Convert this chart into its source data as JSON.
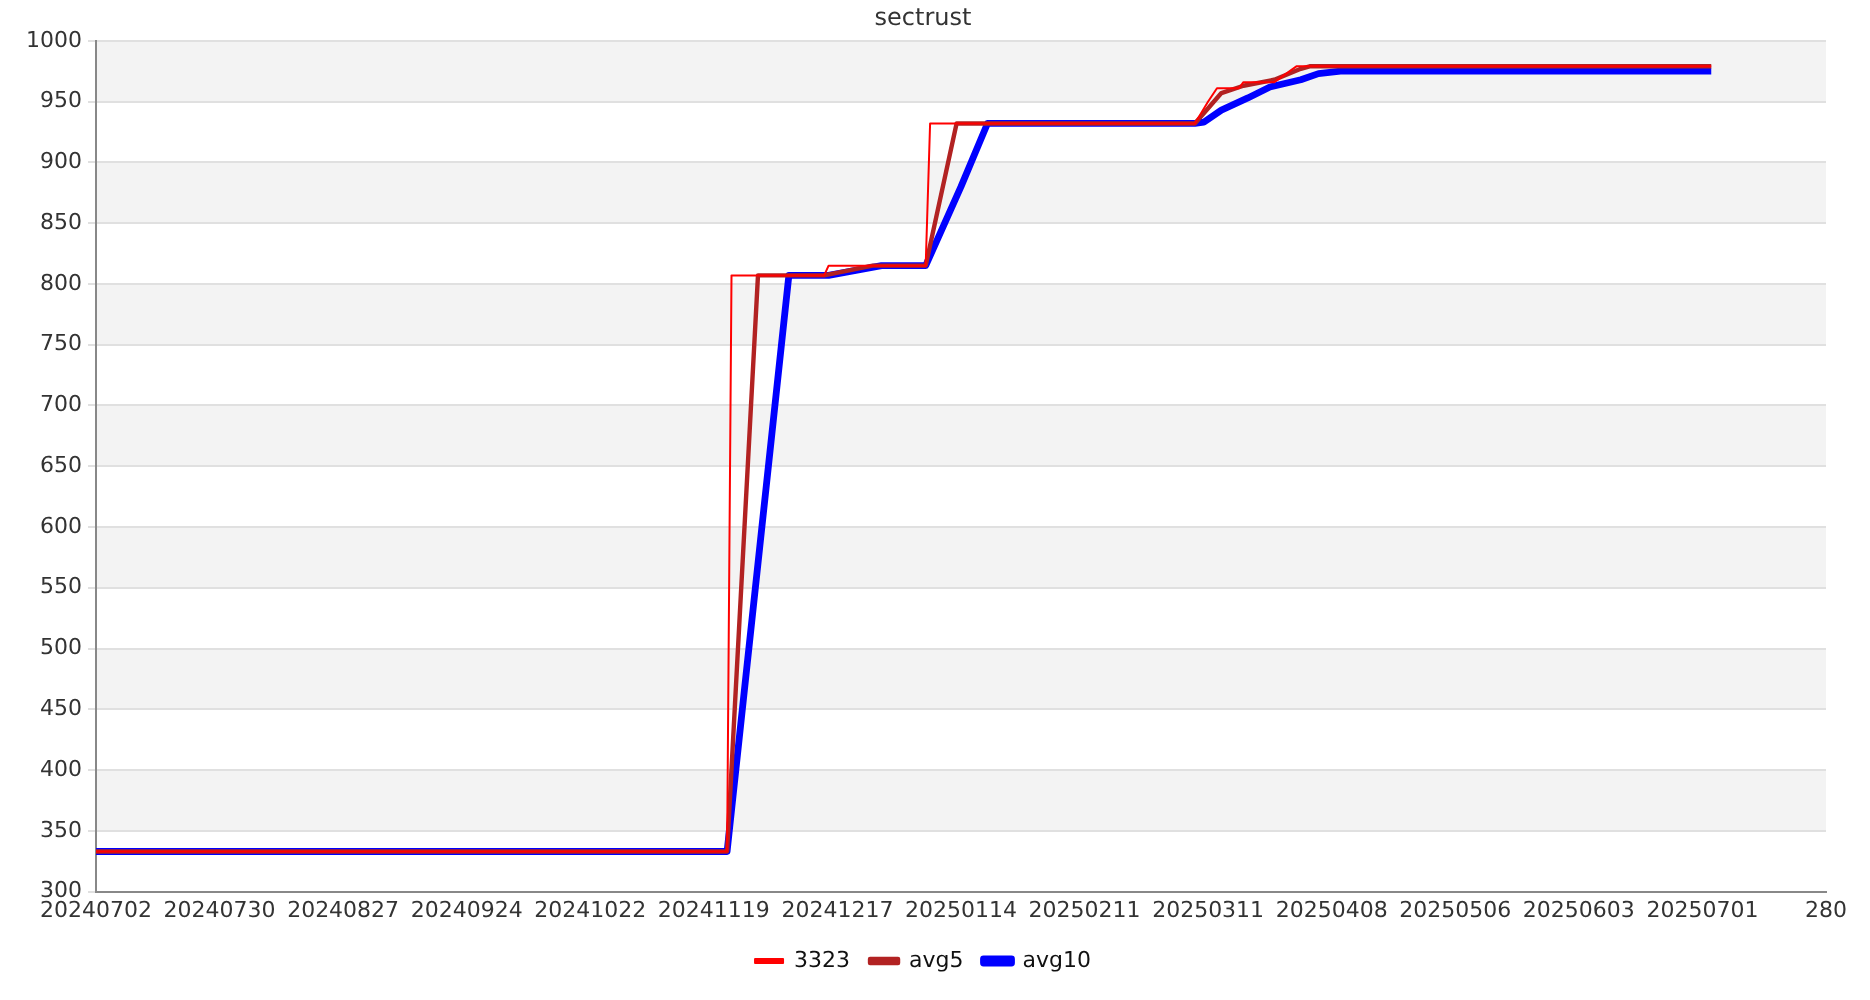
{
  "chart_data": {
    "type": "line",
    "title": "sectrust",
    "xlim": [
      "2024-07-02",
      "2025-07-29"
    ],
    "xticks": [
      {
        "value": "2024-07-02",
        "label": "20240702"
      },
      {
        "value": "2024-07-30",
        "label": "20240730"
      },
      {
        "value": "2024-08-27",
        "label": "20240827"
      },
      {
        "value": "2024-09-24",
        "label": "20240924"
      },
      {
        "value": "2024-10-22",
        "label": "20241022"
      },
      {
        "value": "2024-11-19",
        "label": "20241119"
      },
      {
        "value": "2024-12-17",
        "label": "20241217"
      },
      {
        "value": "2025-01-14",
        "label": "20250114"
      },
      {
        "value": "2025-02-11",
        "label": "20250211"
      },
      {
        "value": "2025-03-11",
        "label": "20250311"
      },
      {
        "value": "2025-04-08",
        "label": "20250408"
      },
      {
        "value": "2025-05-06",
        "label": "20250506"
      },
      {
        "value": "2025-06-03",
        "label": "20250603"
      },
      {
        "value": "2025-07-01",
        "label": "20250701"
      },
      {
        "value": "2025-07-29",
        "label": "280"
      }
    ],
    "ylim": [
      300,
      1000
    ],
    "yticks": [
      300,
      350,
      400,
      450,
      500,
      550,
      600,
      650,
      700,
      750,
      800,
      850,
      900,
      950,
      1000
    ],
    "grid": "y",
    "legend": "bottom",
    "marker": "none",
    "line_style": "solid",
    "series": [
      {
        "name": "3323",
        "color": "#ff0000",
        "x": [
          "2024-07-02",
          "2024-11-22",
          "2024-11-23",
          "2024-12-14",
          "2024-12-15",
          "2025-01-06",
          "2025-01-07",
          "2025-03-08",
          "2025-03-11",
          "2025-03-13",
          "2025-03-18",
          "2025-03-19",
          "2025-03-26",
          "2025-03-31",
          "2025-07-03"
        ],
        "values": [
          333,
          333,
          807,
          807,
          815,
          815,
          932,
          932,
          950,
          961,
          961,
          966,
          966,
          979,
          979
        ]
      },
      {
        "name": "avg5",
        "color": "#b22222",
        "x": [
          "2024-07-02",
          "2024-11-22",
          "2024-11-29",
          "2024-12-14",
          "2024-12-25",
          "2025-01-06",
          "2025-01-13",
          "2025-03-08",
          "2025-03-14",
          "2025-03-19",
          "2025-03-26",
          "2025-04-01",
          "2025-04-03",
          "2025-07-03"
        ],
        "values": [
          333,
          333,
          807,
          807,
          815,
          815,
          932,
          932,
          957,
          963,
          968,
          977,
          979,
          979
        ]
      },
      {
        "name": "avg10",
        "color": "#0000ff",
        "x": [
          "2024-07-02",
          "2024-11-22",
          "2024-12-06",
          "2024-12-15",
          "2024-12-27",
          "2025-01-06",
          "2025-01-14",
          "2025-01-20",
          "2025-03-08",
          "2025-03-10",
          "2025-03-14",
          "2025-03-20",
          "2025-03-25",
          "2025-04-01",
          "2025-04-05",
          "2025-04-10",
          "2025-07-03"
        ],
        "values": [
          333,
          333,
          807,
          807,
          815,
          815,
          880,
          932,
          932,
          933,
          943,
          953,
          962,
          968,
          973,
          975,
          975
        ]
      }
    ]
  }
}
